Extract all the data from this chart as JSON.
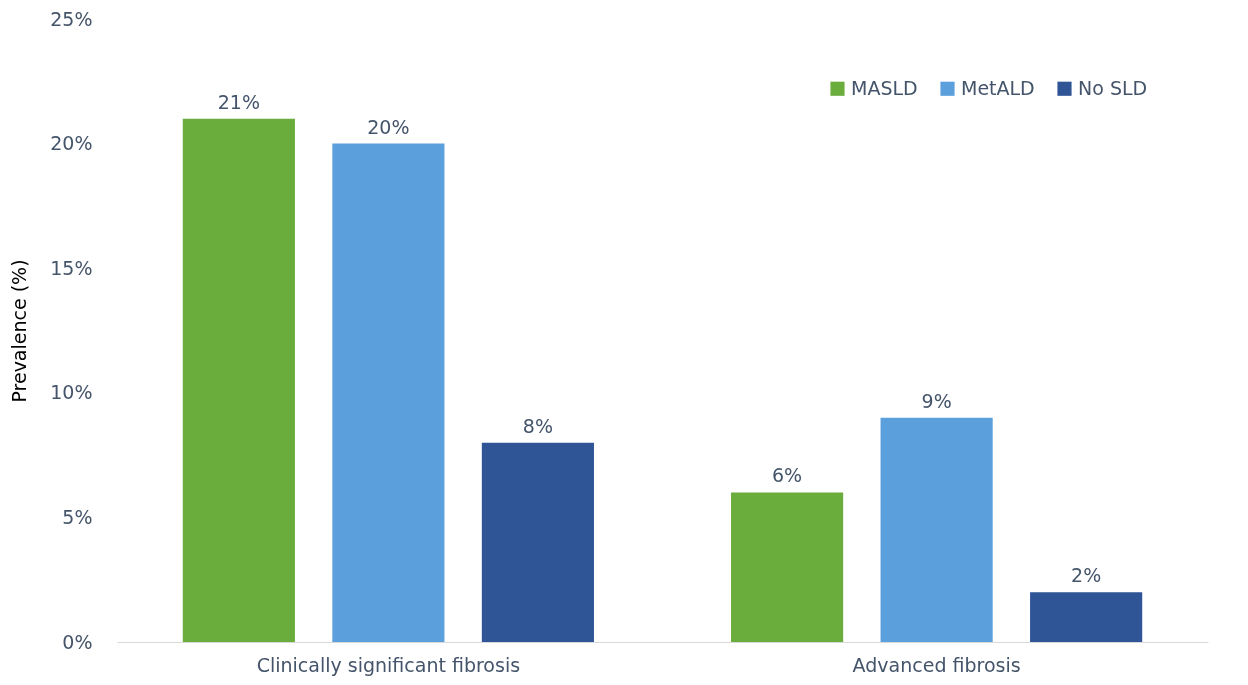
{
  "chart_data": {
    "type": "bar",
    "ylabel": "Prevalence (%)",
    "categories": [
      "Clinically significant fibrosis",
      "Advanced fibrosis"
    ],
    "series": [
      {
        "name": "MASLD",
        "color": "#6aad3d",
        "values": [
          21,
          6
        ],
        "value_labels": [
          "21%",
          "6%"
        ]
      },
      {
        "name": "MetALD",
        "color": "#5b9fdc",
        "values": [
          20,
          9
        ],
        "value_labels": [
          "20%",
          "9%"
        ]
      },
      {
        "name": "No SLD",
        "color": "#2f5597",
        "values": [
          8,
          2
        ],
        "value_labels": [
          "8%",
          "2%"
        ]
      }
    ],
    "ylim": [
      0,
      25
    ],
    "yticks": [
      {
        "value": 0,
        "label": "0%"
      },
      {
        "value": 5,
        "label": "5%"
      },
      {
        "value": 10,
        "label": "10%"
      },
      {
        "value": 15,
        "label": "15%"
      },
      {
        "value": 20,
        "label": "20%"
      },
      {
        "value": 25,
        "label": "25%"
      }
    ],
    "grid": false,
    "legend": "top right"
  }
}
